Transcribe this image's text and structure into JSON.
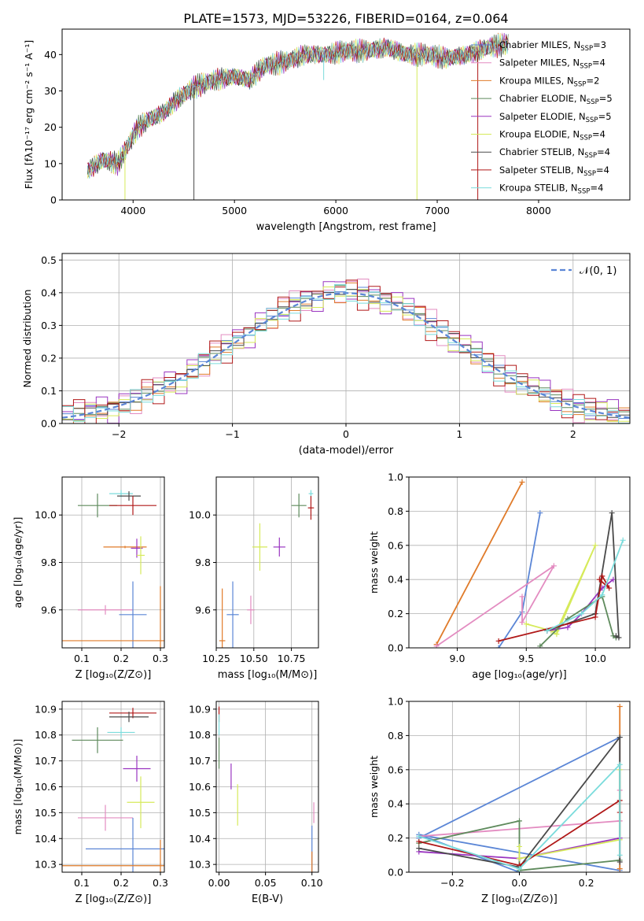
{
  "title": "PLATE=1573, MJD=53226, FIBERID=0164, z=0.064",
  "colors": {
    "chabrier_miles": "#5b86d6",
    "salpeter_miles": "#e38cc1",
    "kroupa_miles": "#e07b2a",
    "chabrier_elodie": "#5e8a5c",
    "salpeter_elodie": "#9a35c0",
    "kroupa_elodie": "#d6ea5a",
    "chabrier_stelib": "#4a4a4a",
    "salpeter_stelib": "#b01818",
    "kroupa_stelib": "#7bdcdc",
    "normal_curve": "#5b86d6"
  },
  "chart_data": [
    {
      "id": "spectrum",
      "type": "line",
      "xlabel": "wavelength [Angstrom, rest frame]",
      "ylabel": "Flux [fλ10⁻¹⁷ erg cm⁻² s⁻¹ A⁻¹]",
      "xlim": [
        3300,
        8900
      ],
      "ylim": [
        0,
        47
      ],
      "xticks": [
        4000,
        5000,
        6000,
        7000,
        8000
      ],
      "yticks": [
        0,
        10,
        20,
        30,
        40
      ],
      "grid": false,
      "legend_position": "right",
      "legend": [
        {
          "label": "Chabrier MILES, N",
          "sub": "SSP",
          "tail": "=3",
          "color_key": "chabrier_miles"
        },
        {
          "label": "Salpeter MILES, N",
          "sub": "SSP",
          "tail": "=4",
          "color_key": "salpeter_miles"
        },
        {
          "label": "Kroupa MILES, N",
          "sub": "SSP",
          "tail": "=2",
          "color_key": "kroupa_miles"
        },
        {
          "label": "Chabrier ELODIE, N",
          "sub": "SSP",
          "tail": "=5",
          "color_key": "chabrier_elodie"
        },
        {
          "label": "Salpeter ELODIE, N",
          "sub": "SSP",
          "tail": "=5",
          "color_key": "salpeter_elodie"
        },
        {
          "label": "Kroupa ELODIE, N",
          "sub": "SSP",
          "tail": "=4",
          "color_key": "kroupa_elodie"
        },
        {
          "label": "Chabrier STELIB, N",
          "sub": "SSP",
          "tail": "=4",
          "color_key": "chabrier_stelib"
        },
        {
          "label": "Salpeter STELIB, N",
          "sub": "SSP",
          "tail": "=4",
          "color_key": "salpeter_stelib"
        },
        {
          "label": "Kroupa STELIB, N",
          "sub": "SSP",
          "tail": "=4",
          "color_key": "kroupa_stelib"
        }
      ],
      "envelope": {
        "x": [
          3550,
          3700,
          3850,
          3950,
          4050,
          4150,
          4300,
          4450,
          4600,
          4800,
          5000,
          5150,
          5300,
          5500,
          5700,
          5900,
          6100,
          6300,
          6500,
          6700,
          6900,
          7100,
          7300,
          7500,
          7700
        ],
        "y": [
          8,
          11,
          10,
          15,
          20,
          22,
          24,
          28,
          31,
          33,
          34,
          33,
          37,
          38,
          40,
          40,
          41,
          41,
          42,
          40,
          40,
          39,
          40,
          42,
          43
        ]
      },
      "spikes": [
        {
          "x": 4600,
          "y": 0,
          "color_key": "chabrier_stelib"
        },
        {
          "x": 3920,
          "y": 0,
          "color_key": "kroupa_elodie"
        },
        {
          "x": 6800,
          "y": 0,
          "color_key": "kroupa_elodie"
        },
        {
          "x": 7400,
          "y": 0,
          "color_key": "salpeter_stelib"
        },
        {
          "x": 5880,
          "y": 33,
          "color_key": "kroupa_stelib"
        }
      ]
    },
    {
      "id": "residuals",
      "type": "histogram",
      "xlabel": "(data-model)/error",
      "ylabel": "Normed distribution",
      "xlim": [
        -2.5,
        2.5
      ],
      "ylim": [
        0,
        0.52
      ],
      "xticks": [
        -2,
        -1,
        0,
        1,
        2
      ],
      "yticks": [
        0.0,
        0.1,
        0.2,
        0.3,
        0.4,
        0.5
      ],
      "grid": true,
      "legend_position": "top-right",
      "legend_label": "𝒩(0, 1)",
      "bin_width": 0.1,
      "bin_start": -2.5,
      "jitter": [
        0.01,
        -0.02,
        0.03,
        -0.01,
        0.02,
        -0.03,
        0.015,
        -0.015,
        0.025
      ]
    },
    {
      "id": "age_vs_Z",
      "type": "errorbar",
      "xlabel": "Z [log₁₀(Z/Z⊙)]",
      "ylabel": "age  [log₁₀(age/yr)]",
      "xlim": [
        0.05,
        0.31
      ],
      "ylim": [
        9.44,
        10.16
      ],
      "xticks": [
        0.1,
        0.2,
        0.3
      ],
      "yticks": [
        9.6,
        9.8,
        10.0
      ],
      "grid": true,
      "points": [
        {
          "x": 0.14,
          "y": 10.04,
          "xerr": 0.05,
          "yerr": 0.05,
          "color_key": "chabrier_elodie"
        },
        {
          "x": 0.2,
          "y": 10.09,
          "xerr": 0.03,
          "yerr": 0.015,
          "color_key": "kroupa_stelib"
        },
        {
          "x": 0.22,
          "y": 10.08,
          "xerr": 0.03,
          "yerr": 0.02,
          "color_key": "chabrier_stelib"
        },
        {
          "x": 0.23,
          "y": 10.04,
          "xerr": 0.06,
          "yerr": 0.04,
          "color_key": "salpeter_stelib"
        },
        {
          "x": 0.21,
          "y": 9.865,
          "xerr": 0.055,
          "yerr": 0.005,
          "color_key": "kroupa_miles"
        },
        {
          "x": 0.24,
          "y": 9.86,
          "xerr": 0.015,
          "yerr": 0.04,
          "color_key": "salpeter_elodie"
        },
        {
          "x": 0.25,
          "y": 9.83,
          "xerr": 0.01,
          "yerr": 0.08,
          "color_key": "kroupa_elodie"
        },
        {
          "x": 0.16,
          "y": 9.6,
          "xerr": 0.07,
          "yerr": 0.02,
          "color_key": "salpeter_miles"
        },
        {
          "x": 0.23,
          "y": 9.58,
          "xerr": 0.035,
          "yerr": 0.14,
          "color_key": "chabrier_miles"
        },
        {
          "x": 0.3,
          "y": 9.47,
          "xerr": 0.255,
          "yerr": 0.23,
          "color_key": "kroupa_miles"
        }
      ]
    },
    {
      "id": "age_vs_mass",
      "type": "errorbar",
      "xlabel": "mass [log₁₀(M/M⊙)]",
      "ylabel": "",
      "xlim": [
        10.25,
        10.93
      ],
      "ylim": [
        9.44,
        10.16
      ],
      "xticks": [
        10.25,
        10.5,
        10.75
      ],
      "yticks": [
        9.6,
        9.8,
        10.0
      ],
      "grid": true,
      "points": [
        {
          "x": 10.88,
          "y": 10.09,
          "xerr": 0.015,
          "yerr": 0.015,
          "color_key": "kroupa_stelib"
        },
        {
          "x": 10.8,
          "y": 10.04,
          "xerr": 0.05,
          "yerr": 0.05,
          "color_key": "chabrier_elodie"
        },
        {
          "x": 10.88,
          "y": 10.03,
          "xerr": 0.02,
          "yerr": 0.05,
          "color_key": "salpeter_stelib"
        },
        {
          "x": 10.54,
          "y": 9.865,
          "xerr": 0.05,
          "yerr": 0.1,
          "color_key": "kroupa_elodie"
        },
        {
          "x": 10.67,
          "y": 9.865,
          "xerr": 0.04,
          "yerr": 0.04,
          "color_key": "salpeter_elodie"
        },
        {
          "x": 10.48,
          "y": 9.6,
          "xerr": 0.025,
          "yerr": 0.06,
          "color_key": "salpeter_miles"
        },
        {
          "x": 10.36,
          "y": 9.58,
          "xerr": 0.04,
          "yerr": 0.14,
          "color_key": "chabrier_miles"
        },
        {
          "x": 10.29,
          "y": 9.47,
          "xerr": 0.02,
          "yerr": 0.22,
          "color_key": "kroupa_miles"
        }
      ]
    },
    {
      "id": "weights_vs_age",
      "type": "line",
      "xlabel": "age  [log₁₀(age/yr)]",
      "ylabel": "mass weight",
      "xlim": [
        8.65,
        10.25
      ],
      "ylim": [
        0,
        1.0
      ],
      "xticks": [
        9.0,
        9.5,
        10.0
      ],
      "yticks": [
        0.0,
        0.2,
        0.4,
        0.6,
        0.8,
        1.0
      ],
      "grid": true,
      "series": [
        {
          "color_key": "kroupa_miles",
          "x": [
            8.85,
            9.47
          ],
          "y": [
            0.02,
            0.97
          ]
        },
        {
          "color_key": "chabrier_miles",
          "x": [
            9.3,
            9.47,
            9.6
          ],
          "y": [
            0.0,
            0.21,
            0.79
          ]
        },
        {
          "color_key": "salpeter_miles",
          "x": [
            9.47,
            9.47,
            9.7,
            8.85
          ],
          "y": [
            0.3,
            0.15,
            0.48,
            0.01
          ]
        },
        {
          "color_key": "kroupa_elodie",
          "x": [
            9.5,
            9.68,
            9.72,
            10.0,
            9.72
          ],
          "y": [
            0.14,
            0.1,
            0.08,
            0.6,
            0.1
          ]
        },
        {
          "color_key": "salpeter_elodie",
          "x": [
            9.65,
            9.8,
            9.9,
            10.05,
            10.13
          ],
          "y": [
            0.1,
            0.12,
            0.2,
            0.35,
            0.4
          ]
        },
        {
          "color_key": "chabrier_elodie",
          "x": [
            9.6,
            9.8,
            10.05,
            10.13,
            10.15
          ],
          "y": [
            0.01,
            0.17,
            0.3,
            0.07,
            0.06
          ]
        },
        {
          "color_key": "chabrier_stelib",
          "x": [
            9.65,
            10.0,
            10.12,
            10.17,
            10.15
          ],
          "y": [
            0.1,
            0.2,
            0.79,
            0.06,
            0.07
          ]
        },
        {
          "color_key": "salpeter_stelib",
          "x": [
            9.3,
            10.0,
            10.05,
            10.1,
            10.03
          ],
          "y": [
            0.04,
            0.18,
            0.42,
            0.35,
            0.4
          ]
        },
        {
          "color_key": "kroupa_stelib",
          "x": [
            9.65,
            9.9,
            10.05,
            10.2
          ],
          "y": [
            0.1,
            0.2,
            0.31,
            0.63
          ]
        }
      ]
    },
    {
      "id": "mass_vs_Z",
      "type": "errorbar",
      "xlabel": "Z [log₁₀(Z/Z⊙)]",
      "ylabel": "mass [log₁₀(M/M⊙)]",
      "xlim": [
        0.05,
        0.31
      ],
      "ylim": [
        10.27,
        10.93
      ],
      "xticks": [
        0.1,
        0.2,
        0.3
      ],
      "yticks": [
        10.3,
        10.4,
        10.5,
        10.6,
        10.7,
        10.8,
        10.9
      ],
      "grid": true,
      "points": [
        {
          "x": 0.23,
          "y": 10.885,
          "xerr": 0.06,
          "yerr": 0.02,
          "color_key": "salpeter_stelib"
        },
        {
          "x": 0.22,
          "y": 10.87,
          "xerr": 0.05,
          "yerr": 0.02,
          "color_key": "chabrier_stelib"
        },
        {
          "x": 0.2,
          "y": 10.81,
          "xerr": 0.035,
          "yerr": 0.02,
          "color_key": "kroupa_stelib"
        },
        {
          "x": 0.14,
          "y": 10.78,
          "xerr": 0.065,
          "yerr": 0.05,
          "color_key": "chabrier_elodie"
        },
        {
          "x": 0.24,
          "y": 10.67,
          "xerr": 0.035,
          "yerr": 0.05,
          "color_key": "salpeter_elodie"
        },
        {
          "x": 0.25,
          "y": 10.54,
          "xerr": 0.035,
          "yerr": 0.1,
          "color_key": "kroupa_elodie"
        },
        {
          "x": 0.16,
          "y": 10.48,
          "xerr": 0.07,
          "yerr": 0.05,
          "color_key": "salpeter_miles"
        },
        {
          "x": 0.23,
          "y": 10.36,
          "xerr": 0.12,
          "yerr": 0.12,
          "color_key": "chabrier_miles"
        },
        {
          "x": 0.3,
          "y": 10.295,
          "xerr": 0.25,
          "yerr": 0.1,
          "color_key": "kroupa_miles"
        }
      ]
    },
    {
      "id": "mass_vs_ebv",
      "type": "errorbar",
      "xlabel": "E(B-V)",
      "ylabel": "",
      "xlim": [
        -0.003,
        0.107
      ],
      "ylim": [
        10.27,
        10.93
      ],
      "xticks": [
        0.0,
        0.05,
        0.1
      ],
      "yticks": [
        10.3,
        10.4,
        10.5,
        10.6,
        10.7,
        10.8,
        10.9
      ],
      "grid": true,
      "points": [
        {
          "x": 0.0,
          "y": 10.88,
          "xerr": 0,
          "yerr": 0.03,
          "color_key": "salpeter_stelib"
        },
        {
          "x": 0.0,
          "y": 10.84,
          "xerr": 0,
          "yerr": 0.04,
          "color_key": "kroupa_stelib"
        },
        {
          "x": 0.0,
          "y": 10.73,
          "xerr": 0,
          "yerr": 0.06,
          "color_key": "chabrier_elodie"
        },
        {
          "x": 0.013,
          "y": 10.64,
          "xerr": 0,
          "yerr": 0.05,
          "color_key": "salpeter_elodie"
        },
        {
          "x": 0.02,
          "y": 10.53,
          "xerr": 0,
          "yerr": 0.08,
          "color_key": "kroupa_elodie"
        },
        {
          "x": 0.102,
          "y": 10.5,
          "xerr": 0,
          "yerr": 0.04,
          "color_key": "salpeter_miles"
        },
        {
          "x": 0.1,
          "y": 10.35,
          "xerr": 0,
          "yerr": 0.1,
          "color_key": "chabrier_miles"
        },
        {
          "x": 0.1,
          "y": 10.3,
          "xerr": 0,
          "yerr": 0.05,
          "color_key": "kroupa_miles"
        }
      ]
    },
    {
      "id": "weights_vs_Z",
      "type": "line",
      "xlabel": "Z [log₁₀(Z/Z⊙)]",
      "ylabel": "mass weight",
      "xlim": [
        -0.33,
        0.33
      ],
      "ylim": [
        0,
        1.0
      ],
      "xticks": [
        -0.2,
        0.0,
        0.2
      ],
      "yticks": [
        0.0,
        0.2,
        0.4,
        0.6,
        0.8,
        1.0
      ],
      "grid": true,
      "series": [
        {
          "color_key": "chabrier_miles",
          "x": [
            -0.3,
            0.3,
            0.3,
            -0.3,
            0.0
          ],
          "y": [
            0.2,
            0.79,
            0.01,
            0.22,
            0.0
          ]
        },
        {
          "color_key": "salpeter_miles",
          "x": [
            -0.3,
            0.3,
            0.3
          ],
          "y": [
            0.21,
            0.3,
            0.48
          ]
        },
        {
          "color_key": "kroupa_miles",
          "x": [
            0.3,
            0.3
          ],
          "y": [
            0.02,
            0.97
          ]
        },
        {
          "color_key": "chabrier_elodie",
          "x": [
            -0.3,
            0.0,
            0.0,
            0.3
          ],
          "y": [
            0.17,
            0.3,
            0.01,
            0.07
          ]
        },
        {
          "color_key": "salpeter_elodie",
          "x": [
            -0.3,
            0.0,
            0.3
          ],
          "y": [
            0.12,
            0.08,
            0.2
          ]
        },
        {
          "color_key": "kroupa_elodie",
          "x": [
            0.0,
            0.0,
            0.3,
            0.3
          ],
          "y": [
            0.15,
            0.08,
            0.19,
            0.6
          ]
        },
        {
          "color_key": "chabrier_stelib",
          "x": [
            -0.3,
            0.0,
            0.3,
            0.3
          ],
          "y": [
            0.14,
            0.03,
            0.79,
            0.06
          ]
        },
        {
          "color_key": "salpeter_stelib",
          "x": [
            -0.3,
            0.0,
            0.3,
            0.3
          ],
          "y": [
            0.18,
            0.04,
            0.42,
            0.35
          ]
        },
        {
          "color_key": "kroupa_stelib",
          "x": [
            -0.3,
            0.0,
            0.3,
            0.3
          ],
          "y": [
            0.21,
            0.02,
            0.63,
            0.1
          ]
        }
      ]
    }
  ]
}
